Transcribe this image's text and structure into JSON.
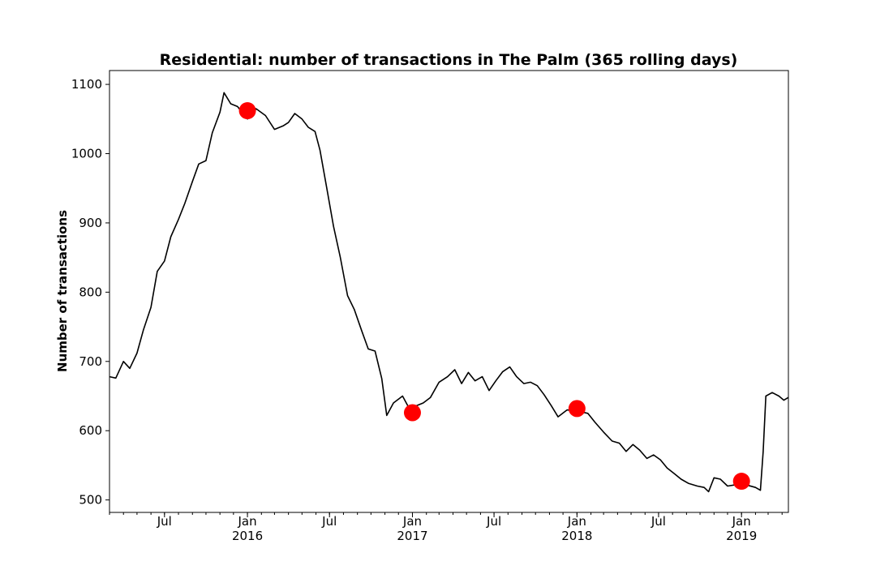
{
  "chart_data": {
    "type": "line",
    "title": "Residential: number of transactions in The Palm (365 rolling days)",
    "xlabel": "",
    "ylabel": "Number of transactions",
    "x_range": [
      "2015-03-01",
      "2019-04-15"
    ],
    "ylim": [
      482,
      1120
    ],
    "y_ticks": [
      500,
      600,
      700,
      800,
      900,
      1000,
      1100
    ],
    "x_ticks": [
      {
        "date": "2015-07-01",
        "label": "Jul",
        "year": ""
      },
      {
        "date": "2016-01-01",
        "label": "Jan",
        "year": "2016"
      },
      {
        "date": "2016-07-01",
        "label": "Jul",
        "year": ""
      },
      {
        "date": "2017-01-01",
        "label": "Jan",
        "year": "2017"
      },
      {
        "date": "2017-07-01",
        "label": "Jul",
        "year": ""
      },
      {
        "date": "2018-01-01",
        "label": "Jan",
        "year": "2018"
      },
      {
        "date": "2018-07-01",
        "label": "Jul",
        "year": ""
      },
      {
        "date": "2019-01-01",
        "label": "Jan",
        "year": "2019"
      }
    ],
    "grid": false,
    "series": [
      {
        "color": "#000000",
        "points": [
          [
            "2015-03-01",
            678
          ],
          [
            "2015-03-15",
            676
          ],
          [
            "2015-04-01",
            700
          ],
          [
            "2015-04-15",
            690
          ],
          [
            "2015-05-01",
            712
          ],
          [
            "2015-05-15",
            745
          ],
          [
            "2015-06-01",
            778
          ],
          [
            "2015-06-15",
            830
          ],
          [
            "2015-07-01",
            845
          ],
          [
            "2015-07-15",
            880
          ],
          [
            "2015-08-01",
            905
          ],
          [
            "2015-08-15",
            928
          ],
          [
            "2015-09-01",
            960
          ],
          [
            "2015-09-15",
            985
          ],
          [
            "2015-10-01",
            990
          ],
          [
            "2015-10-15",
            1030
          ],
          [
            "2015-11-01",
            1060
          ],
          [
            "2015-11-10",
            1088
          ],
          [
            "2015-11-25",
            1072
          ],
          [
            "2015-12-10",
            1068
          ],
          [
            "2016-01-01",
            1050
          ],
          [
            "2016-01-20",
            1065
          ],
          [
            "2016-02-10",
            1055
          ],
          [
            "2016-03-01",
            1035
          ],
          [
            "2016-03-20",
            1040
          ],
          [
            "2016-04-01",
            1045
          ],
          [
            "2016-04-15",
            1058
          ],
          [
            "2016-05-01",
            1050
          ],
          [
            "2016-05-15",
            1038
          ],
          [
            "2016-05-30",
            1032
          ],
          [
            "2016-06-10",
            1005
          ],
          [
            "2016-06-25",
            950
          ],
          [
            "2016-07-10",
            895
          ],
          [
            "2016-07-25",
            850
          ],
          [
            "2016-08-10",
            795
          ],
          [
            "2016-08-25",
            775
          ],
          [
            "2016-09-10",
            745
          ],
          [
            "2016-09-25",
            718
          ],
          [
            "2016-10-10",
            715
          ],
          [
            "2016-10-25",
            675
          ],
          [
            "2016-11-05",
            622
          ],
          [
            "2016-11-20",
            640
          ],
          [
            "2016-12-10",
            650
          ],
          [
            "2016-12-25",
            632
          ],
          [
            "2017-01-10",
            636
          ],
          [
            "2017-01-25",
            640
          ],
          [
            "2017-02-10",
            648
          ],
          [
            "2017-03-01",
            670
          ],
          [
            "2017-03-20",
            678
          ],
          [
            "2017-04-05",
            688
          ],
          [
            "2017-04-20",
            668
          ],
          [
            "2017-05-05",
            684
          ],
          [
            "2017-05-20",
            672
          ],
          [
            "2017-06-05",
            678
          ],
          [
            "2017-06-20",
            658
          ],
          [
            "2017-07-05",
            672
          ],
          [
            "2017-07-20",
            685
          ],
          [
            "2017-08-05",
            692
          ],
          [
            "2017-08-20",
            678
          ],
          [
            "2017-09-05",
            668
          ],
          [
            "2017-09-20",
            670
          ],
          [
            "2017-10-05",
            665
          ],
          [
            "2017-10-20",
            652
          ],
          [
            "2017-11-05",
            636
          ],
          [
            "2017-11-20",
            620
          ],
          [
            "2017-12-10",
            630
          ],
          [
            "2018-01-05",
            628
          ],
          [
            "2018-01-25",
            625
          ],
          [
            "2018-02-10",
            612
          ],
          [
            "2018-03-01",
            598
          ],
          [
            "2018-03-20",
            585
          ],
          [
            "2018-04-05",
            582
          ],
          [
            "2018-04-20",
            570
          ],
          [
            "2018-05-05",
            580
          ],
          [
            "2018-05-20",
            572
          ],
          [
            "2018-06-05",
            560
          ],
          [
            "2018-06-20",
            565
          ],
          [
            "2018-07-05",
            558
          ],
          [
            "2018-07-20",
            546
          ],
          [
            "2018-08-05",
            538
          ],
          [
            "2018-08-20",
            530
          ],
          [
            "2018-09-05",
            524
          ],
          [
            "2018-09-25",
            520
          ],
          [
            "2018-10-10",
            518
          ],
          [
            "2018-10-20",
            512
          ],
          [
            "2018-11-01",
            532
          ],
          [
            "2018-11-15",
            530
          ],
          [
            "2018-12-01",
            520
          ],
          [
            "2018-12-20",
            522
          ],
          [
            "2019-01-10",
            522
          ],
          [
            "2019-02-01",
            518
          ],
          [
            "2019-02-12",
            514
          ],
          [
            "2019-02-18",
            570
          ],
          [
            "2019-02-24",
            650
          ],
          [
            "2019-03-10",
            655
          ],
          [
            "2019-03-25",
            650
          ],
          [
            "2019-04-05",
            644
          ],
          [
            "2019-04-15",
            648
          ]
        ]
      }
    ],
    "markers": [
      {
        "date": "2016-01-01",
        "value": 1062,
        "color": "#ff0000"
      },
      {
        "date": "2017-01-01",
        "value": 626,
        "color": "#ff0000"
      },
      {
        "date": "2018-01-01",
        "value": 632,
        "color": "#ff0000"
      },
      {
        "date": "2019-01-01",
        "value": 527,
        "color": "#ff0000"
      }
    ]
  }
}
